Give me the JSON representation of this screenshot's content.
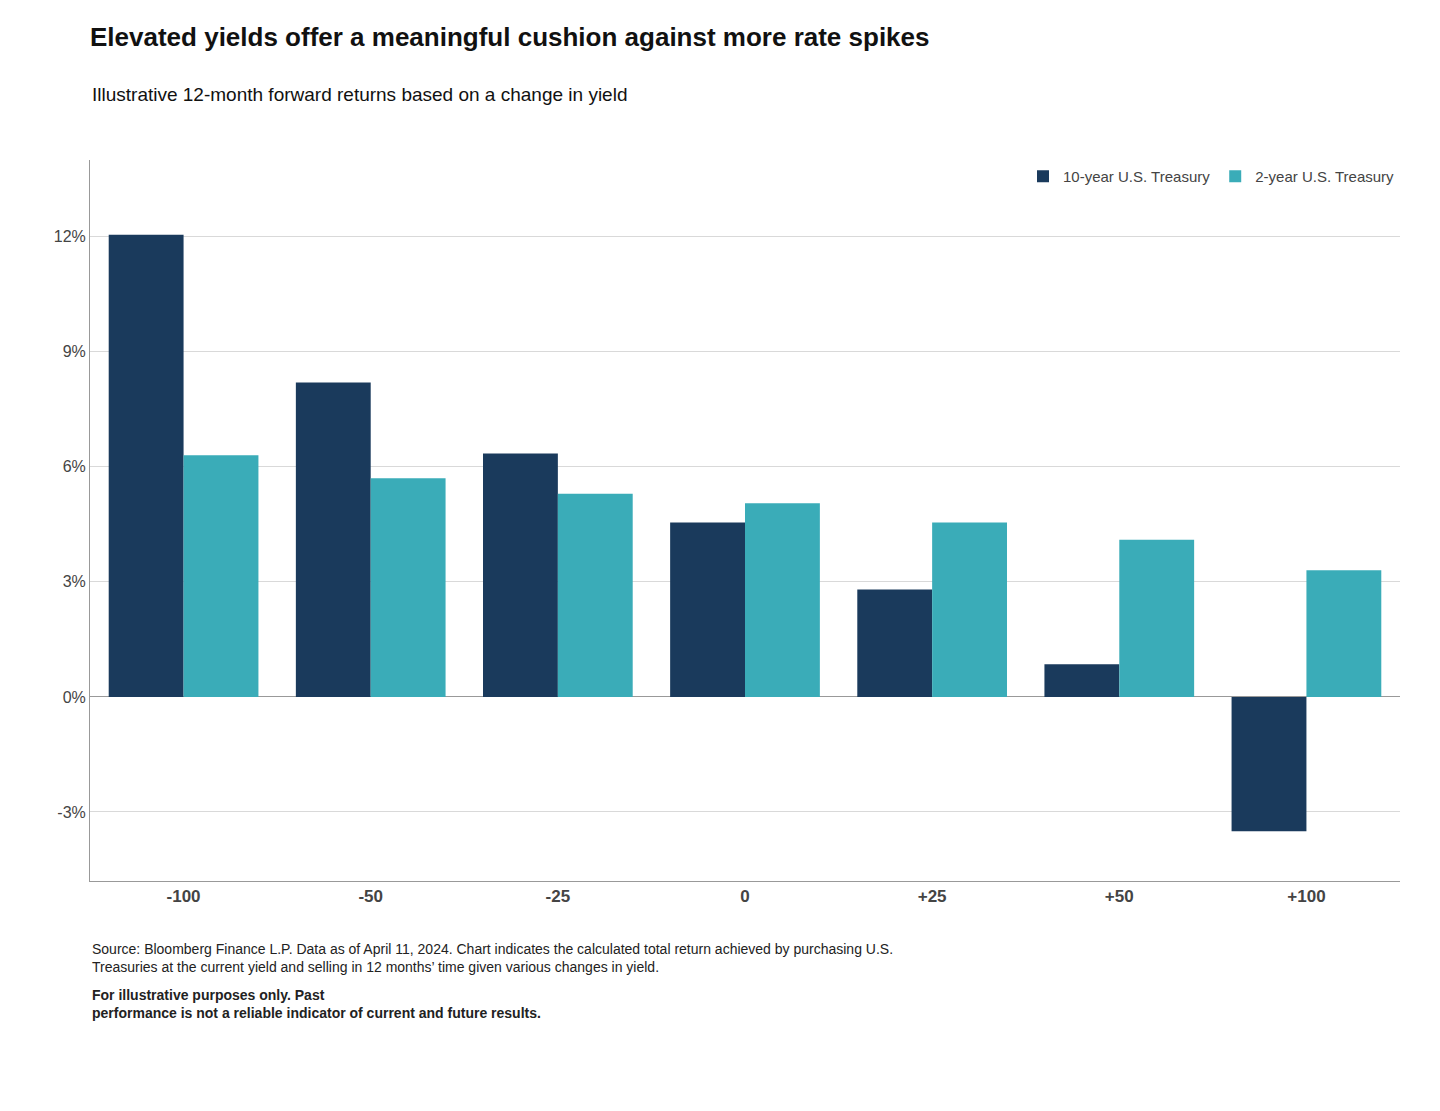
{
  "chart_data": {
    "type": "bar",
    "title": "Elevated yields offer a meaningful cushion against more rate spikes",
    "subtitle": "Illustrative 12-month forward returns based on a change in yield",
    "categories": [
      "-100",
      "-50",
      "-25",
      "0",
      "+25",
      "+50",
      "+100"
    ],
    "series": [
      {
        "name": "10-year U.S. Treasury",
        "color": "#1a3a5c",
        "values": [
          12.05,
          8.2,
          6.35,
          4.55,
          2.8,
          0.85,
          -3.5
        ]
      },
      {
        "name": "2-year U.S. Treasury",
        "color": "#3aacb8",
        "values": [
          6.3,
          5.7,
          5.3,
          5.05,
          4.55,
          4.1,
          3.3
        ]
      }
    ],
    "ylim": [
      -4.8,
      14.0
    ],
    "yticks": [
      {
        "value": -3,
        "label": "-3%"
      },
      {
        "value": 0,
        "label": "0%"
      },
      {
        "value": 3,
        "label": "3%"
      },
      {
        "value": 6,
        "label": "6%"
      },
      {
        "value": 9,
        "label": "9%"
      },
      {
        "value": 12,
        "label": "12%"
      }
    ],
    "grid": true,
    "legend": "upper right",
    "footnote": "Source: Bloomberg Finance L.P. Data as of April 11, 2024. Chart indicates the calculated total return achieved by purchasing U.S.\nTreasuries at the current yield and selling in 12 months’ time given various changes in yield.",
    "footnote_bold": "For illustrative purposes only. Past\nperformance is not a reliable indicator of current and future results."
  }
}
